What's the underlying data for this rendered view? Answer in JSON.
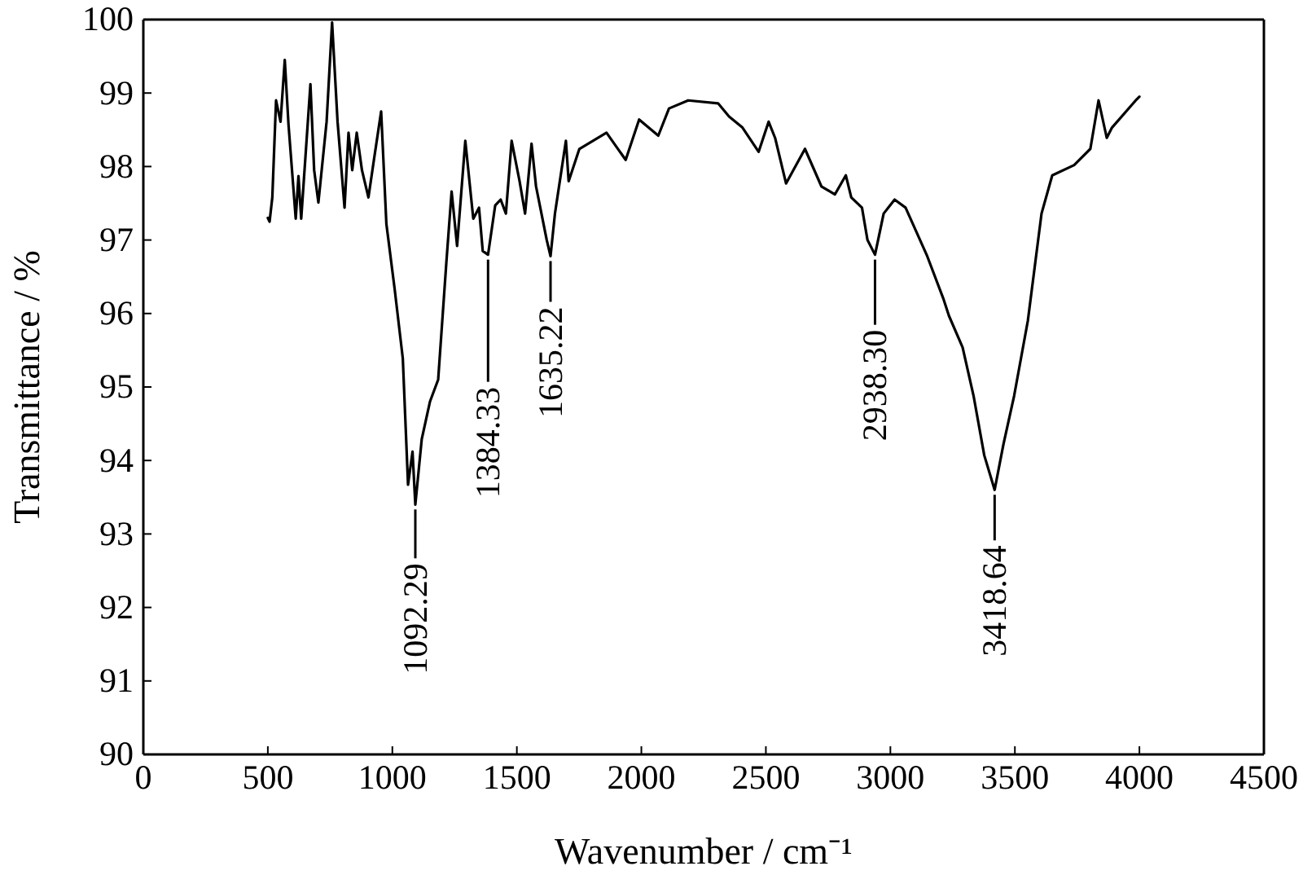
{
  "chart_data": {
    "type": "line",
    "xlabel": "Wavenumber / cm⁻¹",
    "ylabel": "Transmittance / %",
    "xlim": [
      0,
      4500
    ],
    "xticks": [
      0,
      500,
      1000,
      1500,
      2000,
      2500,
      3000,
      3500,
      4000,
      4500
    ],
    "ylim": [
      90,
      100
    ],
    "yticks": [
      90,
      91,
      92,
      93,
      94,
      95,
      96,
      97,
      98,
      99,
      100
    ],
    "marker": "none",
    "line_style": "solid",
    "series": [
      {
        "color": "#000000",
        "x": [
          500,
          507,
          518,
          533,
          551,
          568,
          583,
          612,
          623,
          634,
          671,
          686,
          703,
          736,
          758,
          780,
          808,
          824,
          839,
          857,
          878,
          904,
          926,
          955,
          976,
          1009,
          1042,
          1063,
          1081,
          1092.29,
          1118,
          1151,
          1184,
          1217,
          1238,
          1260,
          1293,
          1325,
          1348,
          1363,
          1384.33,
          1413,
          1435,
          1456,
          1479,
          1511,
          1533,
          1559,
          1577,
          1620,
          1635.22,
          1653,
          1697,
          1708,
          1751,
          1860,
          1937,
          1991,
          2068,
          2111,
          2188,
          2308,
          2352,
          2406,
          2471,
          2511,
          2537,
          2581,
          2657,
          2723,
          2777,
          2821,
          2843,
          2886,
          2908,
          2938.3,
          2973,
          3017,
          3061,
          3148,
          3214,
          3235,
          3290,
          3334,
          3377,
          3418.64,
          3454,
          3497,
          3552,
          3607,
          3650,
          3738,
          3803,
          3836,
          3869,
          3890,
          3988,
          4000
        ],
        "values": [
          97.3,
          97.25,
          97.58,
          98.9,
          98.61,
          99.45,
          98.57,
          97.29,
          97.87,
          97.29,
          99.12,
          97.95,
          97.51,
          98.61,
          99.96,
          98.61,
          97.44,
          98.46,
          97.95,
          98.46,
          97.95,
          97.58,
          98.09,
          98.75,
          97.22,
          96.34,
          95.39,
          93.67,
          94.12,
          93.4,
          94.29,
          94.8,
          95.1,
          96.7,
          97.66,
          96.92,
          98.35,
          97.29,
          97.44,
          96.85,
          96.8,
          97.47,
          97.55,
          97.36,
          98.35,
          97.8,
          97.36,
          98.31,
          97.73,
          97.0,
          96.78,
          97.36,
          98.35,
          97.8,
          98.24,
          98.46,
          98.09,
          98.64,
          98.42,
          98.79,
          98.9,
          98.86,
          98.68,
          98.53,
          98.2,
          98.61,
          98.39,
          97.77,
          98.24,
          97.73,
          97.62,
          97.88,
          97.58,
          97.44,
          97.0,
          96.8,
          97.36,
          97.55,
          97.44,
          96.78,
          96.19,
          95.97,
          95.54,
          94.88,
          94.07,
          93.6,
          94.22,
          94.88,
          95.9,
          97.36,
          97.88,
          98.02,
          98.24,
          98.9,
          98.39,
          98.53,
          98.91,
          98.95
        ]
      }
    ],
    "annotations": [
      {
        "text": "1092.29",
        "x": 1092.29,
        "y": 93.4
      },
      {
        "text": "1384.33",
        "x": 1384.33,
        "y": 96.8
      },
      {
        "text": "1635.22",
        "x": 1635.22,
        "y": 96.78
      },
      {
        "text": "2938.30",
        "x": 2938.3,
        "y": 96.8
      },
      {
        "text": "3418.64",
        "x": 3418.64,
        "y": 93.6
      }
    ]
  }
}
